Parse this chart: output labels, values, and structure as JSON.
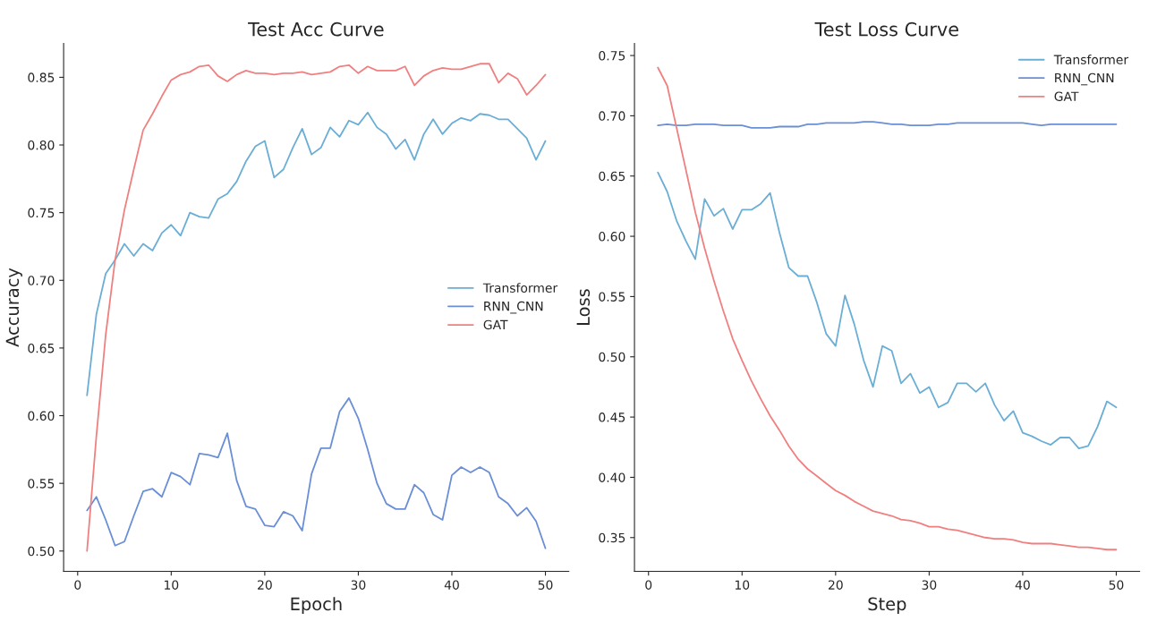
{
  "chart_data": [
    {
      "type": "line",
      "title": "Test Acc Curve",
      "xlabel": "Epoch",
      "ylabel": "Accuracy",
      "x": [
        1,
        2,
        3,
        4,
        5,
        6,
        7,
        8,
        9,
        10,
        11,
        12,
        13,
        14,
        15,
        16,
        17,
        18,
        19,
        20,
        21,
        22,
        23,
        24,
        25,
        26,
        27,
        28,
        29,
        30,
        31,
        32,
        33,
        34,
        35,
        36,
        37,
        38,
        39,
        40,
        41,
        42,
        43,
        44,
        45,
        46,
        47,
        48,
        49,
        50
      ],
      "series": [
        {
          "name": "Transformer",
          "color": "#6aaed6",
          "values": [
            0.615,
            0.675,
            0.705,
            0.715,
            0.727,
            0.718,
            0.727,
            0.722,
            0.735,
            0.741,
            0.733,
            0.75,
            0.747,
            0.746,
            0.76,
            0.764,
            0.773,
            0.788,
            0.799,
            0.803,
            0.776,
            0.782,
            0.798,
            0.812,
            0.793,
            0.798,
            0.813,
            0.806,
            0.818,
            0.815,
            0.824,
            0.813,
            0.808,
            0.797,
            0.804,
            0.789,
            0.808,
            0.819,
            0.808,
            0.816,
            0.82,
            0.818,
            0.823,
            0.822,
            0.819,
            0.819,
            0.812,
            0.805,
            0.789,
            0.803
          ]
        },
        {
          "name": "RNN_CNN",
          "color": "#6a8fd6",
          "values": [
            0.53,
            0.54,
            0.523,
            0.504,
            0.507,
            0.526,
            0.544,
            0.546,
            0.54,
            0.558,
            0.555,
            0.549,
            0.572,
            0.571,
            0.569,
            0.587,
            0.552,
            0.533,
            0.531,
            0.519,
            0.518,
            0.529,
            0.526,
            0.515,
            0.557,
            0.576,
            0.576,
            0.603,
            0.613,
            0.598,
            0.575,
            0.55,
            0.535,
            0.531,
            0.531,
            0.549,
            0.543,
            0.527,
            0.523,
            0.556,
            0.562,
            0.558,
            0.562,
            0.558,
            0.54,
            0.535,
            0.526,
            0.532,
            0.522,
            0.502
          ]
        },
        {
          "name": "GAT",
          "color": "#f08080",
          "values": [
            0.5,
            0.585,
            0.66,
            0.715,
            0.752,
            0.782,
            0.811,
            0.823,
            0.836,
            0.848,
            0.852,
            0.854,
            0.858,
            0.859,
            0.851,
            0.847,
            0.852,
            0.855,
            0.853,
            0.853,
            0.852,
            0.853,
            0.853,
            0.854,
            0.852,
            0.853,
            0.854,
            0.858,
            0.859,
            0.853,
            0.858,
            0.855,
            0.855,
            0.855,
            0.858,
            0.844,
            0.851,
            0.855,
            0.857,
            0.856,
            0.856,
            0.858,
            0.86,
            0.86,
            0.846,
            0.853,
            0.849,
            0.837,
            0.844,
            0.852
          ]
        }
      ],
      "xlim": [
        -1.5,
        52.5
      ],
      "xticks": [
        0,
        10,
        20,
        30,
        40,
        50
      ],
      "ylim": [
        0.485,
        0.875
      ],
      "yticks": [
        {
          "value": 0.5,
          "label": "0.50"
        },
        {
          "value": 0.55,
          "label": "0.55"
        },
        {
          "value": 0.6,
          "label": "0.60"
        },
        {
          "value": 0.65,
          "label": "0.65"
        },
        {
          "value": 0.7,
          "label": "0.70"
        },
        {
          "value": 0.75,
          "label": "0.75"
        },
        {
          "value": 0.8,
          "label": "0.80"
        },
        {
          "value": 0.85,
          "label": "0.85"
        }
      ],
      "legend": "center right",
      "grid": false,
      "marker": "none",
      "line_style": "solid"
    },
    {
      "type": "line",
      "title": "Test Loss Curve",
      "xlabel": "Step",
      "ylabel": "Loss",
      "x": [
        1,
        2,
        3,
        4,
        5,
        6,
        7,
        8,
        9,
        10,
        11,
        12,
        13,
        14,
        15,
        16,
        17,
        18,
        19,
        20,
        21,
        22,
        23,
        24,
        25,
        26,
        27,
        28,
        29,
        30,
        31,
        32,
        33,
        34,
        35,
        36,
        37,
        38,
        39,
        40,
        41,
        42,
        43,
        44,
        45,
        46,
        47,
        48,
        49,
        50
      ],
      "series": [
        {
          "name": "Transformer",
          "color": "#6aaed6",
          "values": [
            0.653,
            0.637,
            0.613,
            0.596,
            0.581,
            0.631,
            0.617,
            0.623,
            0.606,
            0.622,
            0.622,
            0.627,
            0.636,
            0.603,
            0.574,
            0.567,
            0.567,
            0.545,
            0.519,
            0.509,
            0.551,
            0.527,
            0.497,
            0.475,
            0.509,
            0.505,
            0.478,
            0.486,
            0.47,
            0.475,
            0.458,
            0.462,
            0.478,
            0.478,
            0.471,
            0.478,
            0.46,
            0.447,
            0.455,
            0.437,
            0.434,
            0.43,
            0.427,
            0.433,
            0.433,
            0.424,
            0.426,
            0.442,
            0.463,
            0.458
          ]
        },
        {
          "name": "RNN_CNN",
          "color": "#6a8fd6",
          "values": [
            0.692,
            0.693,
            0.692,
            0.692,
            0.693,
            0.693,
            0.693,
            0.692,
            0.692,
            0.692,
            0.69,
            0.69,
            0.69,
            0.691,
            0.691,
            0.691,
            0.693,
            0.693,
            0.694,
            0.694,
            0.694,
            0.694,
            0.695,
            0.695,
            0.694,
            0.693,
            0.693,
            0.692,
            0.692,
            0.692,
            0.693,
            0.693,
            0.694,
            0.694,
            0.694,
            0.694,
            0.694,
            0.694,
            0.694,
            0.694,
            0.693,
            0.692,
            0.693,
            0.693,
            0.693,
            0.693,
            0.693,
            0.693,
            0.693,
            0.693
          ]
        },
        {
          "name": "GAT",
          "color": "#f08080",
          "values": [
            0.74,
            0.725,
            0.69,
            0.655,
            0.62,
            0.59,
            0.563,
            0.538,
            0.515,
            0.497,
            0.48,
            0.465,
            0.451,
            0.439,
            0.426,
            0.415,
            0.407,
            0.401,
            0.395,
            0.389,
            0.385,
            0.38,
            0.376,
            0.372,
            0.37,
            0.368,
            0.365,
            0.364,
            0.362,
            0.359,
            0.359,
            0.357,
            0.356,
            0.354,
            0.352,
            0.35,
            0.349,
            0.349,
            0.348,
            0.346,
            0.345,
            0.345,
            0.345,
            0.344,
            0.343,
            0.342,
            0.342,
            0.341,
            0.34,
            0.34
          ]
        }
      ],
      "xlim": [
        -1.5,
        52.5
      ],
      "xticks": [
        0,
        10,
        20,
        30,
        40,
        50
      ],
      "ylim": [
        0.322,
        0.76
      ],
      "yticks": [
        {
          "value": 0.35,
          "label": "0.35"
        },
        {
          "value": 0.4,
          "label": "0.40"
        },
        {
          "value": 0.45,
          "label": "0.45"
        },
        {
          "value": 0.5,
          "label": "0.50"
        },
        {
          "value": 0.55,
          "label": "0.55"
        },
        {
          "value": 0.6,
          "label": "0.60"
        },
        {
          "value": 0.65,
          "label": "0.65"
        },
        {
          "value": 0.7,
          "label": "0.70"
        },
        {
          "value": 0.75,
          "label": "0.75"
        }
      ],
      "legend": "upper right",
      "grid": false,
      "marker": "none",
      "line_style": "solid"
    }
  ]
}
